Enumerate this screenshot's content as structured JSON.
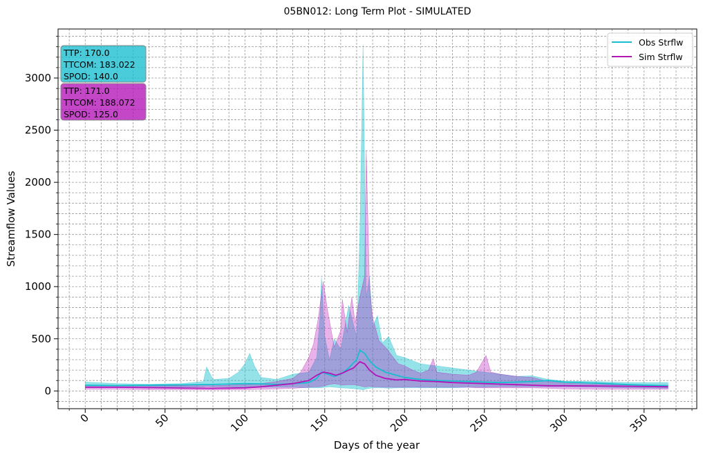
{
  "chart_data": {
    "type": "line",
    "title": "05BN012: Long Term Plot - SIMULATED",
    "xlabel": "Days of the year",
    "ylabel": "Streamflow Values",
    "xlim": [
      -17,
      383
    ],
    "ylim": [
      -170,
      3470
    ],
    "x_ticks": [
      0,
      50,
      100,
      150,
      200,
      250,
      300,
      350
    ],
    "x_tick_labels": [
      "0",
      "50",
      "100",
      "150",
      "200",
      "250",
      "300",
      "350"
    ],
    "y_ticks": [
      0,
      500,
      1000,
      1500,
      2000,
      2500,
      3000
    ],
    "y_tick_labels": [
      "0",
      "500",
      "1000",
      "1500",
      "2000",
      "2500",
      "3000"
    ],
    "grid": true,
    "legend_position": "top-right",
    "series": [
      {
        "name": "Obs Strflw",
        "color": "#17becf",
        "band_points": [
          [
            0,
            40,
            85
          ],
          [
            20,
            35,
            70
          ],
          [
            40,
            35,
            65
          ],
          [
            60,
            35,
            70
          ],
          [
            74,
            40,
            90
          ],
          [
            76,
            45,
            230
          ],
          [
            80,
            40,
            110
          ],
          [
            90,
            40,
            120
          ],
          [
            96,
            35,
            180
          ],
          [
            100,
            35,
            260
          ],
          [
            103,
            40,
            360
          ],
          [
            106,
            35,
            240
          ],
          [
            110,
            35,
            130
          ],
          [
            120,
            35,
            110
          ],
          [
            130,
            35,
            160
          ],
          [
            140,
            30,
            180
          ],
          [
            145,
            30,
            320
          ],
          [
            147,
            30,
            700
          ],
          [
            148,
            30,
            1090
          ],
          [
            150,
            35,
            520
          ],
          [
            153,
            40,
            300
          ],
          [
            156,
            35,
            500
          ],
          [
            160,
            30,
            400
          ],
          [
            165,
            25,
            820
          ],
          [
            170,
            20,
            520
          ],
          [
            172,
            15,
            1500
          ],
          [
            174,
            10,
            3320
          ],
          [
            176,
            20,
            900
          ],
          [
            178,
            25,
            1100
          ],
          [
            180,
            30,
            620
          ],
          [
            183,
            30,
            720
          ],
          [
            186,
            30,
            460
          ],
          [
            190,
            25,
            520
          ],
          [
            195,
            30,
            340
          ],
          [
            200,
            30,
            320
          ],
          [
            210,
            30,
            260
          ],
          [
            220,
            30,
            240
          ],
          [
            230,
            30,
            220
          ],
          [
            240,
            35,
            200
          ],
          [
            250,
            35,
            180
          ],
          [
            260,
            40,
            160
          ],
          [
            270,
            40,
            140
          ],
          [
            280,
            40,
            145
          ],
          [
            290,
            40,
            110
          ],
          [
            300,
            40,
            95
          ],
          [
            320,
            35,
            90
          ],
          [
            340,
            30,
            80
          ],
          [
            365,
            25,
            80
          ]
        ],
        "mean_points": [
          [
            0,
            55
          ],
          [
            20,
            52
          ],
          [
            40,
            55
          ],
          [
            60,
            58
          ],
          [
            80,
            62
          ],
          [
            100,
            70
          ],
          [
            110,
            68
          ],
          [
            120,
            62
          ],
          [
            130,
            70
          ],
          [
            140,
            80
          ],
          [
            145,
            120
          ],
          [
            148,
            180
          ],
          [
            152,
            160
          ],
          [
            156,
            140
          ],
          [
            160,
            160
          ],
          [
            165,
            220
          ],
          [
            170,
            300
          ],
          [
            172,
            390
          ],
          [
            175,
            360
          ],
          [
            178,
            290
          ],
          [
            182,
            230
          ],
          [
            188,
            180
          ],
          [
            195,
            150
          ],
          [
            200,
            130
          ],
          [
            210,
            110
          ],
          [
            220,
            100
          ],
          [
            230,
            95
          ],
          [
            240,
            90
          ],
          [
            250,
            85
          ],
          [
            260,
            80
          ],
          [
            270,
            85
          ],
          [
            280,
            90
          ],
          [
            290,
            100
          ],
          [
            300,
            85
          ],
          [
            320,
            75
          ],
          [
            340,
            60
          ],
          [
            365,
            50
          ]
        ]
      },
      {
        "name": "Sim Strflw",
        "color": "#b413b8",
        "band_points": [
          [
            0,
            15,
            55
          ],
          [
            20,
            15,
            50
          ],
          [
            40,
            12,
            50
          ],
          [
            60,
            12,
            50
          ],
          [
            80,
            10,
            50
          ],
          [
            100,
            12,
            60
          ],
          [
            110,
            15,
            70
          ],
          [
            120,
            20,
            90
          ],
          [
            130,
            25,
            120
          ],
          [
            135,
            30,
            180
          ],
          [
            140,
            35,
            320
          ],
          [
            143,
            40,
            450
          ],
          [
            146,
            40,
            700
          ],
          [
            149,
            45,
            1050
          ],
          [
            152,
            60,
            750
          ],
          [
            156,
            70,
            420
          ],
          [
            160,
            60,
            580
          ],
          [
            161,
            55,
            880
          ],
          [
            164,
            60,
            560
          ],
          [
            167,
            60,
            900
          ],
          [
            169,
            60,
            650
          ],
          [
            172,
            50,
            900
          ],
          [
            175,
            40,
            1100
          ],
          [
            176,
            40,
            2310
          ],
          [
            178,
            45,
            1000
          ],
          [
            180,
            40,
            700
          ],
          [
            184,
            40,
            480
          ],
          [
            188,
            35,
            420
          ],
          [
            192,
            35,
            340
          ],
          [
            196,
            35,
            260
          ],
          [
            200,
            35,
            240
          ],
          [
            205,
            40,
            200
          ],
          [
            210,
            35,
            170
          ],
          [
            215,
            35,
            200
          ],
          [
            218,
            35,
            310
          ],
          [
            220,
            35,
            180
          ],
          [
            230,
            35,
            160
          ],
          [
            240,
            35,
            150
          ],
          [
            245,
            30,
            180
          ],
          [
            248,
            30,
            260
          ],
          [
            251,
            30,
            340
          ],
          [
            254,
            30,
            180
          ],
          [
            260,
            30,
            160
          ],
          [
            270,
            30,
            140
          ],
          [
            280,
            30,
            130
          ],
          [
            290,
            25,
            90
          ],
          [
            300,
            20,
            75
          ],
          [
            320,
            15,
            65
          ],
          [
            340,
            15,
            60
          ],
          [
            365,
            15,
            55
          ]
        ],
        "mean_points": [
          [
            0,
            35
          ],
          [
            20,
            35
          ],
          [
            40,
            32
          ],
          [
            60,
            28
          ],
          [
            80,
            25
          ],
          [
            100,
            30
          ],
          [
            110,
            40
          ],
          [
            120,
            55
          ],
          [
            130,
            70
          ],
          [
            140,
            100
          ],
          [
            145,
            150
          ],
          [
            149,
            180
          ],
          [
            153,
            170
          ],
          [
            157,
            150
          ],
          [
            161,
            170
          ],
          [
            165,
            200
          ],
          [
            168,
            220
          ],
          [
            172,
            280
          ],
          [
            175,
            260
          ],
          [
            178,
            200
          ],
          [
            182,
            150
          ],
          [
            188,
            120
          ],
          [
            195,
            105
          ],
          [
            200,
            110
          ],
          [
            210,
            95
          ],
          [
            220,
            90
          ],
          [
            230,
            80
          ],
          [
            240,
            75
          ],
          [
            250,
            70
          ],
          [
            260,
            65
          ],
          [
            270,
            60
          ],
          [
            280,
            55
          ],
          [
            290,
            50
          ],
          [
            300,
            50
          ],
          [
            320,
            48
          ],
          [
            340,
            45
          ],
          [
            365,
            40
          ]
        ]
      }
    ],
    "stat_boxes": [
      {
        "name": "Obs Strflw",
        "color": "#17becf",
        "lines": [
          "TTP: 170.0",
          "TTCOM: 183.022",
          "SPOD: 140.0"
        ]
      },
      {
        "name": "Sim Strflw",
        "color": "#b413b8",
        "lines": [
          "TTP: 171.0",
          "TTCOM: 188.072",
          "SPOD: 125.0"
        ]
      }
    ]
  }
}
